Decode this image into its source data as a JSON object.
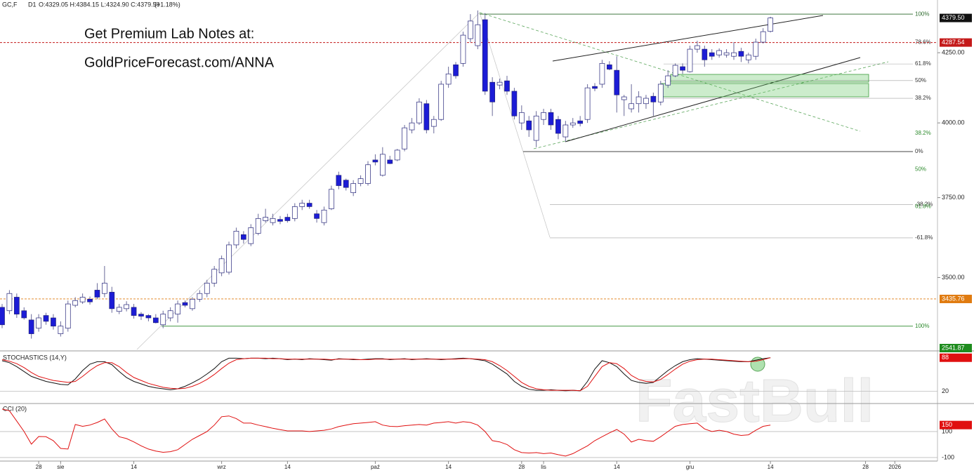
{
  "header": {
    "symbol": "GC,F",
    "timeframe": "D1",
    "ohlc": "O:4329.05 H:4384.15 L:4324.90 C:4379.50",
    "change": "(+1.18%)"
  },
  "promo": [
    "Get Premium Lab Notes at:",
    "GoldPriceForecast.com/ANNA"
  ],
  "watermark": "FastBull",
  "chart_data": [
    {
      "type": "candlestick",
      "categories": [
        null,
        null,
        null,
        null,
        null,
        "28",
        null,
        null,
        "sie",
        null,
        null,
        null,
        null,
        null,
        null,
        null,
        null,
        null,
        "14",
        null,
        null,
        null,
        null,
        null,
        null,
        null,
        null,
        null,
        null,
        null,
        "wrz",
        null,
        null,
        null,
        null,
        null,
        null,
        null,
        null,
        "14",
        null,
        null,
        null,
        null,
        null,
        null,
        null,
        null,
        null,
        null,
        null,
        "paź",
        null,
        null,
        null,
        null,
        null,
        null,
        null,
        null,
        null,
        "14",
        null,
        null,
        null,
        null,
        null,
        null,
        null,
        null,
        null,
        "28",
        null,
        null,
        "lis",
        null,
        null,
        null,
        null,
        null,
        null,
        null,
        null,
        null,
        "14",
        null,
        null,
        null,
        null,
        null,
        null,
        null,
        null,
        null,
        "gru",
        null,
        null,
        null,
        null,
        null,
        null,
        null,
        null,
        null,
        null,
        "14",
        null,
        null,
        null,
        null,
        null,
        null,
        null,
        null,
        null,
        null,
        null,
        null,
        "28",
        null,
        null,
        null,
        "2026"
      ],
      "open": [
        3411,
        3401,
        3441,
        3401,
        3374,
        3350,
        3387,
        3380,
        3334,
        3350,
        3417,
        3427,
        3435,
        3462,
        3452,
        3456,
        3399,
        3407,
        3411,
        3391,
        3387,
        3380,
        3360,
        3380,
        3391,
        3425,
        3407,
        3435,
        3452,
        3483,
        3514,
        3516,
        3600,
        3632,
        3604,
        3636,
        3676,
        3670,
        3680,
        3687,
        3683,
        3721,
        3732,
        3698,
        3670,
        3714,
        3823,
        3807,
        3766,
        3796,
        3796,
        3874,
        3823,
        3874,
        3874,
        3911,
        3976,
        4000,
        4067,
        3988,
        4012,
        4136,
        4206,
        4211,
        4302,
        4276,
        4373,
        4143,
        4133,
        4148,
        4111,
        4000,
        4007,
        3940,
        4012,
        4036,
        4012,
        3952,
        3993,
        4007,
        4012,
        4128,
        4136,
        4206,
        4186,
        4081,
        4049,
        4067,
        4067,
        4093,
        4073,
        4133,
        4166,
        4199,
        4181,
        4263,
        4263,
        4250,
        4242,
        4242,
        4237,
        4255,
        4224,
        4237,
        4289,
        4329.05,
        null,
        null,
        null,
        null,
        null,
        null,
        null,
        null,
        null,
        null,
        null,
        null,
        null,
        null,
        null,
        null,
        null
      ],
      "high": [
        3421,
        3462,
        3452,
        3411,
        3391,
        3391,
        3395,
        3391,
        3370,
        3431,
        3441,
        3452,
        3443,
        3483,
        3535,
        3472,
        3421,
        3429,
        3421,
        3397,
        3391,
        3391,
        3401,
        3411,
        3431,
        3431,
        3441,
        3462,
        3493,
        3535,
        3567,
        3610,
        3654,
        3643,
        3665,
        3698,
        3714,
        3698,
        3691,
        3698,
        3732,
        3743,
        3743,
        3710,
        3721,
        3789,
        3835,
        3812,
        3807,
        3823,
        3870,
        3893,
        3917,
        3888,
        3911,
        3993,
        4017,
        4086,
        4080,
        4024,
        4148,
        4199,
        4216,
        4328,
        4394,
        4408,
        4398,
        4161,
        4156,
        4166,
        4123,
        4061,
        4024,
        4041,
        4049,
        4049,
        4024,
        4007,
        4017,
        4024,
        4136,
        4140,
        4224,
        4219,
        4237,
        4098,
        4136,
        4111,
        4098,
        4106,
        4148,
        4186,
        4211,
        4211,
        4276,
        4294,
        4276,
        4263,
        4266,
        4263,
        4289,
        4268,
        4250,
        4302,
        4341,
        4384.15,
        null,
        null,
        null,
        null,
        null,
        null,
        null,
        null,
        null,
        null,
        null,
        null,
        null,
        null,
        null,
        null,
        null
      ],
      "low": [
        3350,
        3391,
        3380,
        3375,
        3320,
        3340,
        3360,
        3346,
        3326,
        3340,
        3411,
        3421,
        3419,
        3435,
        3441,
        3395,
        3391,
        3399,
        3378,
        3374,
        3370,
        3364,
        3350,
        3370,
        3366,
        3411,
        3401,
        3427,
        3441,
        3472,
        3504,
        3509,
        3589,
        3604,
        3596,
        3630,
        3670,
        3661,
        3665,
        3670,
        3674,
        3710,
        3714,
        3670,
        3661,
        3710,
        3777,
        3773,
        3755,
        3787,
        3789,
        3856,
        3819,
        3860,
        3870,
        3903,
        3964,
        3993,
        3964,
        3964,
        4007,
        4123,
        4156,
        4199,
        4289,
        4263,
        4098,
        4024,
        4118,
        4098,
        4012,
        3976,
        3952,
        3917,
        3993,
        3976,
        3944,
        3936,
        3983,
        3988,
        4000,
        4111,
        4123,
        4186,
        4036,
        4024,
        4036,
        4036,
        4049,
        4024,
        4061,
        4123,
        4161,
        4173,
        4178,
        4250,
        4199,
        4224,
        4232,
        4232,
        4224,
        4216,
        4211,
        4224,
        4284,
        4324.9,
        null,
        null,
        null,
        null,
        null,
        null,
        null,
        null,
        null,
        null,
        null,
        null,
        null,
        null,
        null,
        null,
        null
      ],
      "close": [
        3360,
        3452,
        3391,
        3380,
        3334,
        3380,
        3370,
        3356,
        3356,
        3421,
        3431,
        3441,
        3427,
        3441,
        3483,
        3407,
        3411,
        3419,
        3387,
        3385,
        3380,
        3366,
        3391,
        3401,
        3421,
        3417,
        3435,
        3452,
        3483,
        3525,
        3557,
        3600,
        3643,
        3617,
        3654,
        3683,
        3687,
        3683,
        3674,
        3676,
        3721,
        3732,
        3721,
        3683,
        3710,
        3777,
        3789,
        3783,
        3796,
        3812,
        3858,
        3867,
        3893,
        3862,
        3907,
        3983,
        4000,
        4073,
        3976,
        4012,
        4136,
        4173,
        4166,
        4315,
        4368,
        4354,
        4111,
        4073,
        4143,
        4111,
        4024,
        4036,
        3976,
        4024,
        4036,
        3993,
        3964,
        3993,
        4000,
        3998,
        4123,
        4121,
        4211,
        4190,
        4098,
        4091,
        4067,
        4091,
        4086,
        4073,
        4136,
        4166,
        4204,
        4186,
        4263,
        4276,
        4224,
        4237,
        4258,
        4250,
        4250,
        4237,
        4242,
        4289,
        4328,
        4379.5,
        null,
        null,
        null,
        null,
        null,
        null,
        null,
        null,
        null,
        null,
        null,
        null,
        null,
        null,
        null,
        null,
        null
      ],
      "up_color": "#ffffff",
      "down_color": "#1c1cd6",
      "edge_color": "#24247a",
      "ylim": [
        3289,
        4448
      ],
      "log": true,
      "yticks": [
        {
          "value": 4250,
          "label": "4250.00"
        },
        {
          "value": 4000,
          "label": "4000.00"
        },
        {
          "value": 3750,
          "label": "3750.00"
        },
        {
          "value": 3500,
          "label": "3500.00"
        }
      ],
      "levels": [
        {
          "label": "100%",
          "value": 4394,
          "color": "#2e6b2e"
        },
        {
          "label": "78.6%",
          "value": 4287.54,
          "color": "#333333"
        },
        {
          "label": "61.8%",
          "value": 4209,
          "color": "#333333"
        },
        {
          "label": "50%",
          "value": 4149,
          "color": "#333333"
        },
        {
          "label": "38.2%",
          "value": 4086,
          "color": "#333333"
        },
        {
          "label": "38.2%",
          "value": 3964,
          "color": "#2e8b2e"
        },
        {
          "label": "0%",
          "value": 3902,
          "color": "#333333"
        },
        {
          "label": "50%",
          "value": 3842,
          "color": "#2e8b2e"
        },
        {
          "label": "-38.2%",
          "value": 3728,
          "color": "#333333"
        },
        {
          "label": "61.8%",
          "value": 3721,
          "color": "#2e8b2e"
        },
        {
          "label": "-61.8%",
          "value": 3622,
          "color": "#333333"
        },
        {
          "label": "100%",
          "value": 3356,
          "color": "#2e8b2e"
        }
      ],
      "price_boxes": [
        {
          "value": 4379.5,
          "label": "4379.50",
          "color": "#111111",
          "line": false
        },
        {
          "value": 4287.54,
          "label": "4287.54",
          "color": "#c41a1a",
          "line": true
        },
        {
          "value": 3435.76,
          "label": "3435.76",
          "color": "#e07b10",
          "line": true
        },
        {
          "value": 2541.87,
          "label": "2541.87",
          "color": "#1e8c1e",
          "line": false
        }
      ]
    },
    {
      "type": "line",
      "title": "STOCHASTICS (14,Y)",
      "ylim": [
        -2,
        99
      ],
      "yticks": [
        20
      ],
      "series": [
        {
          "color": "#111111",
          "values": [
            82,
            78,
            70,
            60,
            50,
            45,
            40,
            37,
            34,
            33,
            45,
            62,
            75,
            80,
            80,
            74,
            60,
            48,
            40,
            35,
            30,
            27,
            25,
            23,
            25,
            30,
            37,
            45,
            55,
            66,
            80,
            87,
            87,
            86,
            87,
            87,
            86,
            87,
            86,
            84,
            85,
            84,
            86,
            85,
            84,
            83,
            86,
            85,
            84,
            84,
            85,
            86,
            86,
            84,
            85,
            86,
            84,
            85,
            86,
            85,
            84,
            85,
            86,
            87,
            86,
            84,
            82,
            75,
            65,
            55,
            40,
            30,
            24,
            22,
            22,
            23,
            22,
            21,
            22,
            21,
            40,
            65,
            82,
            78,
            70,
            55,
            42,
            38,
            36,
            38,
            50,
            62,
            72,
            80,
            84,
            86,
            85,
            84,
            83,
            82,
            81,
            80,
            80,
            83,
            86,
            88,
            null,
            null,
            null,
            null,
            null,
            null,
            null,
            null,
            null,
            null,
            null,
            null,
            null,
            null,
            null,
            null,
            null
          ]
        },
        {
          "color": "#e01010",
          "values": [
            84,
            81,
            76,
            68,
            58,
            50,
            46,
            42,
            40,
            38,
            40,
            50,
            62,
            72,
            78,
            78,
            70,
            58,
            48,
            42,
            36,
            32,
            28,
            26,
            25,
            26,
            30,
            36,
            44,
            54,
            66,
            77,
            84,
            86,
            87,
            87,
            87,
            86,
            86,
            85,
            85,
            85,
            85,
            85,
            85,
            84,
            85,
            85,
            85,
            84,
            84,
            85,
            85,
            85,
            85,
            85,
            85,
            85,
            85,
            85,
            85,
            85,
            85,
            86,
            86,
            85,
            84,
            80,
            72,
            62,
            50,
            38,
            30,
            25,
            23,
            22,
            22,
            22,
            22,
            21,
            30,
            50,
            70,
            78,
            76,
            66,
            52,
            44,
            40,
            39,
            44,
            54,
            65,
            75,
            81,
            84,
            85,
            85,
            84,
            83,
            82,
            81,
            80,
            81,
            84,
            88,
            null,
            null,
            null,
            null,
            null,
            null,
            null,
            null,
            null,
            null,
            null,
            null,
            null,
            null,
            null,
            null,
            null
          ]
        }
      ]
    },
    {
      "type": "line",
      "title": "CCI (20)",
      "ylim": [
        -122,
        305
      ],
      "yticks": [
        100,
        -100
      ],
      "series": [
        {
          "color": "#e01010",
          "values": [
            273,
            260,
            181,
            100,
            3,
            62,
            60,
            30,
            -30,
            -35,
            154,
            140,
            150,
            170,
            197,
            120,
            60,
            46,
            20,
            -10,
            -35,
            -50,
            -60,
            -55,
            -40,
            0,
            40,
            70,
            100,
            150,
            214,
            220,
            200,
            165,
            165,
            150,
            138,
            125,
            115,
            105,
            105,
            105,
            100,
            105,
            110,
            120,
            138,
            150,
            160,
            165,
            170,
            176,
            150,
            140,
            138,
            145,
            150,
            154,
            150,
            165,
            170,
            176,
            165,
            176,
            170,
            150,
            100,
            30,
            20,
            0,
            -40,
            -62,
            -65,
            -62,
            -70,
            -65,
            -78,
            -89,
            -70,
            -40,
            -10,
            30,
            60,
            90,
            116,
            80,
            19,
            40,
            30,
            25,
            60,
            100,
            140,
            154,
            160,
            165,
            120,
            100,
            110,
            100,
            80,
            70,
            75,
            110,
            140,
            150,
            null,
            null,
            null,
            null,
            null,
            null,
            null,
            null,
            null,
            null,
            null,
            null,
            null,
            null,
            null,
            null,
            null
          ]
        }
      ]
    }
  ]
}
